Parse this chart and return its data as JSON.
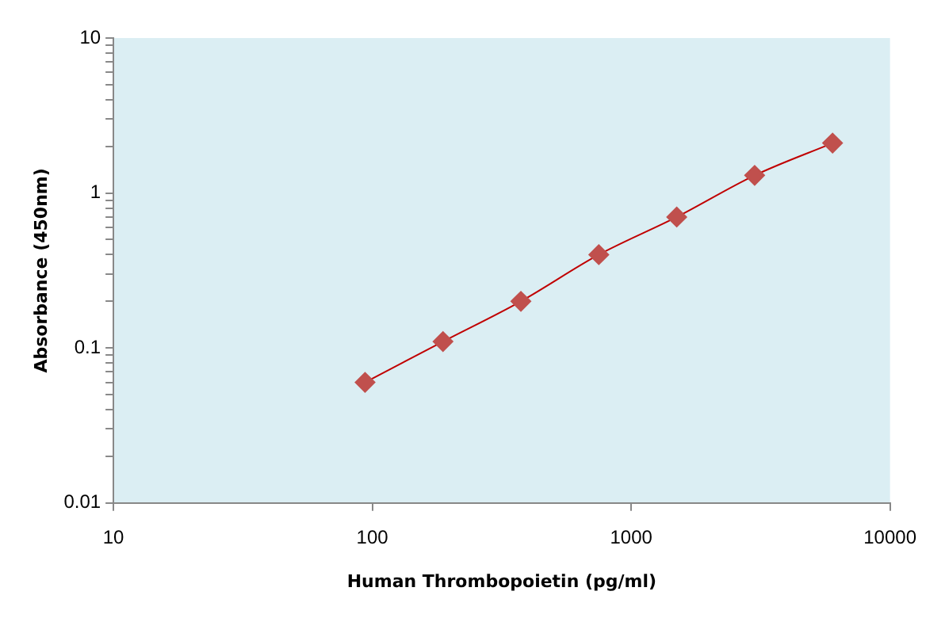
{
  "chart_data": {
    "type": "line",
    "xlabel": "Human Thrombopoietin (pg/ml)",
    "ylabel": "Absorbance (450nm)",
    "log": "xy",
    "marker": "diamond",
    "grid": false,
    "legend": false,
    "x": [
      93.75,
      187.5,
      375,
      750,
      1500,
      3000,
      6000
    ],
    "series": [
      {
        "color": "#c0504d",
        "values": [
          0.06,
          0.11,
          0.2,
          0.4,
          0.7,
          1.3,
          2.1
        ]
      }
    ],
    "xlim": [
      10,
      10000
    ],
    "xticks": [
      10,
      100,
      1000,
      10000
    ],
    "ylim": [
      0.01,
      10
    ],
    "yticks": [
      0.01,
      {
        "value": 0.02,
        "label": null
      },
      {
        "value": 0.03,
        "label": null
      },
      {
        "value": 0.04,
        "label": null
      },
      {
        "value": 0.05,
        "label": null
      },
      {
        "value": 0.06,
        "label": null
      },
      {
        "value": 0.07,
        "label": null
      },
      {
        "value": 0.08,
        "label": null
      },
      {
        "value": 0.09,
        "label": null
      },
      0.1,
      {
        "value": 0.2,
        "label": null
      },
      {
        "value": 0.3,
        "label": null
      },
      {
        "value": 0.4,
        "label": null
      },
      {
        "value": 0.5,
        "label": null
      },
      {
        "value": 0.6,
        "label": null
      },
      {
        "value": 0.7,
        "label": null
      },
      {
        "value": 0.8,
        "label": null
      },
      {
        "value": 0.9,
        "label": null
      },
      1,
      {
        "value": 2,
        "label": null
      },
      {
        "value": 3,
        "label": null
      },
      {
        "value": 4,
        "label": null
      },
      {
        "value": 5,
        "label": null
      },
      {
        "value": 6,
        "label": null
      },
      {
        "value": 7,
        "label": null
      },
      {
        "value": 8,
        "label": null
      },
      {
        "value": 9,
        "label": null
      },
      10
    ]
  }
}
